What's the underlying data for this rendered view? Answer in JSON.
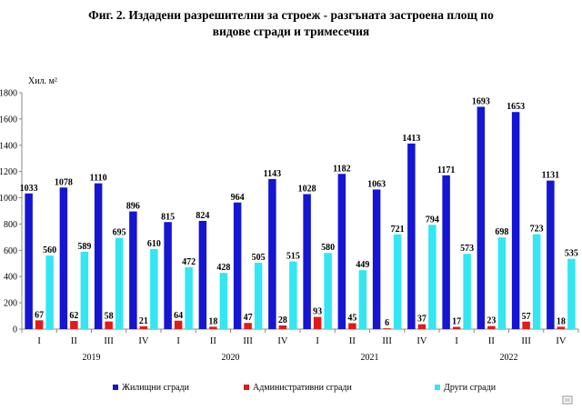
{
  "title_line1": "Фиг. 2. Издадени разрешителни за строеж - разгъната застроена площ по",
  "title_line2": "видове сгради и тримесечия",
  "chart_data": {
    "type": "bar",
    "unit_label": "Хил. м²",
    "quarters": [
      "I",
      "II",
      "III",
      "IV",
      "I",
      "II",
      "III",
      "IV",
      "I",
      "II",
      "III",
      "IV",
      "I",
      "II",
      "III",
      "IV"
    ],
    "years": [
      "2019",
      "2020",
      "2021",
      "2022"
    ],
    "ylim": [
      0,
      1800
    ],
    "yticks": [
      0,
      200,
      400,
      600,
      800,
      1000,
      1200,
      1400,
      1600,
      1800
    ],
    "grid": false,
    "legend_position": "bottom",
    "series": [
      {
        "name": "Жилищни сгради",
        "color": "#1515d2",
        "values": [
          1033,
          1078,
          1110,
          896,
          815,
          824,
          964,
          1143,
          1028,
          1182,
          1063,
          1413,
          1171,
          1693,
          1653,
          1131
        ]
      },
      {
        "name": "Административни сгради",
        "color": "#e21a1a",
        "values": [
          67,
          62,
          58,
          21,
          64,
          18,
          47,
          28,
          93,
          45,
          6,
          37,
          17,
          23,
          57,
          18
        ]
      },
      {
        "name": "Други сгради",
        "color": "#33e6f2",
        "values": [
          560,
          589,
          695,
          610,
          472,
          428,
          505,
          515,
          580,
          449,
          721,
          794,
          573,
          698,
          723,
          535
        ]
      }
    ]
  }
}
